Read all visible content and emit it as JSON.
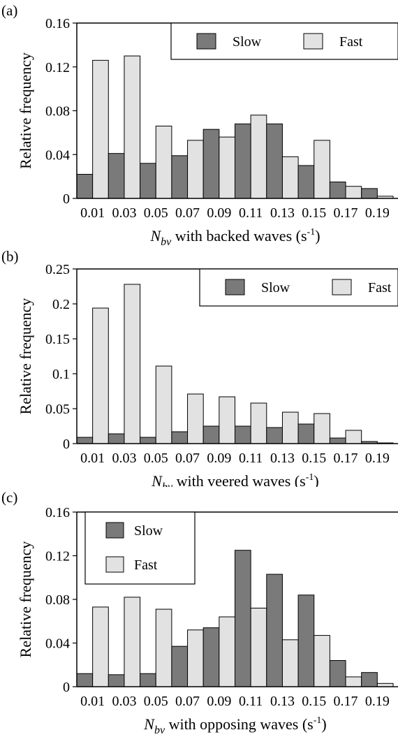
{
  "colors": {
    "slow": "#7a7a7a",
    "fast": "#e2e2e2"
  },
  "chart_data": [
    {
      "type": "bar",
      "panel_label": "(a)",
      "x_tick_labels": [
        "0.01",
        "0.03",
        "0.05",
        "0.07",
        "0.09",
        "0.11",
        "0.13",
        "0.15",
        "0.17",
        "0.19"
      ],
      "bin_start": 0.0,
      "bin_width": 0.01,
      "x_range": [
        0.0,
        0.2
      ],
      "xlabel": {
        "symbol": "N",
        "sub": "bv",
        "text": " with backed waves (s",
        "sup": "-1",
        "close": ")"
      },
      "ylabel": "Relative frequency",
      "ylim": [
        0,
        0.16
      ],
      "y_ticks": [
        0,
        0.04,
        0.08,
        0.12,
        0.16
      ],
      "y_tick_labels": [
        "0",
        "0.04",
        "0.08",
        "0.12",
        "0.16"
      ],
      "legend_layout": "row",
      "legend_position": "top-right",
      "series": [
        {
          "name": "Slow",
          "key": "slow",
          "values": [
            0.022,
            0.041,
            0.032,
            0.039,
            0.063,
            0.068,
            0.068,
            0.03,
            0.015,
            0.009
          ]
        },
        {
          "name": "Fast",
          "key": "fast",
          "values": [
            0.126,
            0.13,
            0.066,
            0.053,
            0.056,
            0.076,
            0.038,
            0.053,
            0.011,
            0.002
          ]
        }
      ]
    },
    {
      "type": "bar",
      "panel_label": "(b)",
      "x_tick_labels": [
        "0.01",
        "0.03",
        "0.05",
        "0.07",
        "0.09",
        "0.11",
        "0.13",
        "0.15",
        "0.17",
        "0.19"
      ],
      "bin_start": 0.0,
      "bin_width": 0.01,
      "x_range": [
        0.0,
        0.2
      ],
      "xlabel": {
        "symbol": "N",
        "sub": "bv",
        "text": " with veered waves (s",
        "sup": "-1",
        "close": ")"
      },
      "ylabel": "Relative frequency",
      "ylim": [
        0,
        0.25
      ],
      "y_ticks": [
        0,
        0.05,
        0.1,
        0.15,
        0.2,
        0.25
      ],
      "y_tick_labels": [
        "0",
        "0.05",
        "0.1",
        "0.15",
        "0.2",
        "0.25"
      ],
      "legend_layout": "row",
      "legend_position": "top-right",
      "series": [
        {
          "name": "Slow",
          "key": "slow",
          "values": [
            0.009,
            0.014,
            0.009,
            0.017,
            0.025,
            0.025,
            0.023,
            0.028,
            0.008,
            0.003
          ]
        },
        {
          "name": "Fast",
          "key": "fast",
          "values": [
            0.194,
            0.228,
            0.111,
            0.071,
            0.067,
            0.058,
            0.045,
            0.043,
            0.019,
            0.001
          ]
        }
      ]
    },
    {
      "type": "bar",
      "panel_label": "(c)",
      "x_tick_labels": [
        "0.01",
        "0.03",
        "0.05",
        "0.07",
        "0.09",
        "0.11",
        "0.13",
        "0.15",
        "0.17",
        "0.19"
      ],
      "bin_start": 0.0,
      "bin_width": 0.01,
      "x_range": [
        0.0,
        0.2
      ],
      "xlabel": {
        "symbol": "N",
        "sub": "bv",
        "text": " with opposing waves (s",
        "sup": "-1",
        "close": ")"
      },
      "ylabel": "Relative frequency",
      "ylim": [
        0,
        0.16
      ],
      "y_ticks": [
        0,
        0.04,
        0.08,
        0.12,
        0.16
      ],
      "y_tick_labels": [
        "0",
        "0.04",
        "0.08",
        "0.12",
        "0.16"
      ],
      "legend_layout": "column",
      "legend_position": "top-left",
      "series": [
        {
          "name": "Slow",
          "key": "slow",
          "values": [
            0.012,
            0.011,
            0.012,
            0.037,
            0.054,
            0.125,
            0.103,
            0.084,
            0.024,
            0.013
          ]
        },
        {
          "name": "Fast",
          "key": "fast",
          "values": [
            0.073,
            0.082,
            0.071,
            0.052,
            0.064,
            0.072,
            0.043,
            0.047,
            0.009,
            0.003
          ]
        }
      ]
    }
  ]
}
